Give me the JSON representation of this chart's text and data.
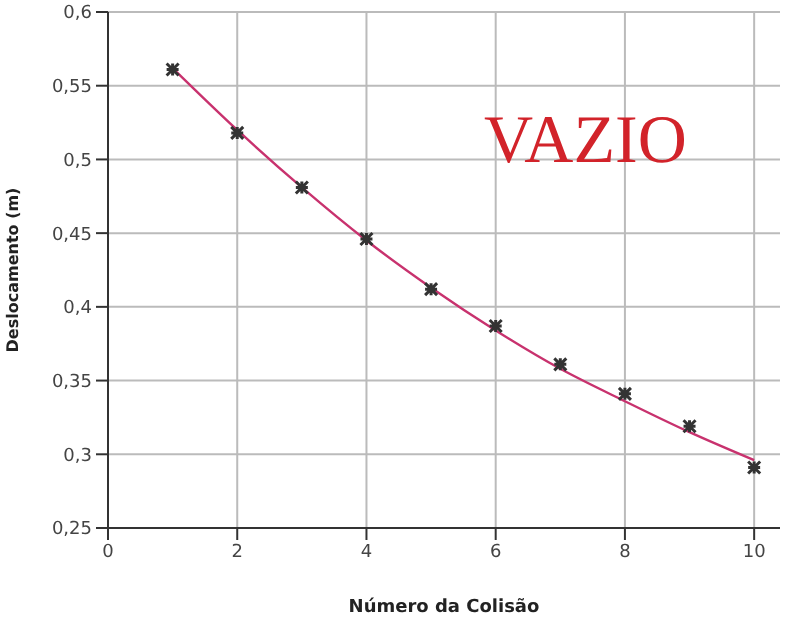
{
  "chart_data": {
    "type": "scatter",
    "xlabel": "Número da Colisão",
    "ylabel": "Deslocamento (m)",
    "annotations": [
      "VAZIO"
    ],
    "xlim": [
      0,
      10.4
    ],
    "xticks": [
      0,
      2,
      4,
      6,
      8,
      10
    ],
    "ylim": [
      0.25,
      0.6
    ],
    "yticks": [
      {
        "value": 0.25,
        "label": "0,25"
      },
      {
        "value": 0.3,
        "label": "0,3"
      },
      {
        "value": 0.35,
        "label": "0,35"
      },
      {
        "value": 0.4,
        "label": "0,4"
      },
      {
        "value": 0.45,
        "label": "0,45"
      },
      {
        "value": 0.5,
        "label": "0,5"
      },
      {
        "value": 0.55,
        "label": "0,55"
      },
      {
        "value": 0.6,
        "label": "0,6"
      }
    ],
    "grid": true,
    "legend": false,
    "series": [
      {
        "color": "#333333",
        "marker": "cross",
        "x": [
          1,
          2,
          3,
          4,
          5,
          6,
          7,
          8,
          9,
          10
        ],
        "values": [
          0.561,
          0.518,
          0.481,
          0.446,
          0.412,
          0.387,
          0.361,
          0.341,
          0.319,
          0.291
        ]
      },
      {
        "type": "line",
        "color": "#c8326e",
        "marker": "none",
        "line_style": "solid",
        "x": [
          1,
          2,
          3,
          4,
          5,
          6,
          7,
          8,
          9,
          10
        ],
        "values": [
          0.562,
          0.52,
          0.481,
          0.445,
          0.413,
          0.384,
          0.358,
          0.336,
          0.315,
          0.296
        ]
      }
    ]
  }
}
